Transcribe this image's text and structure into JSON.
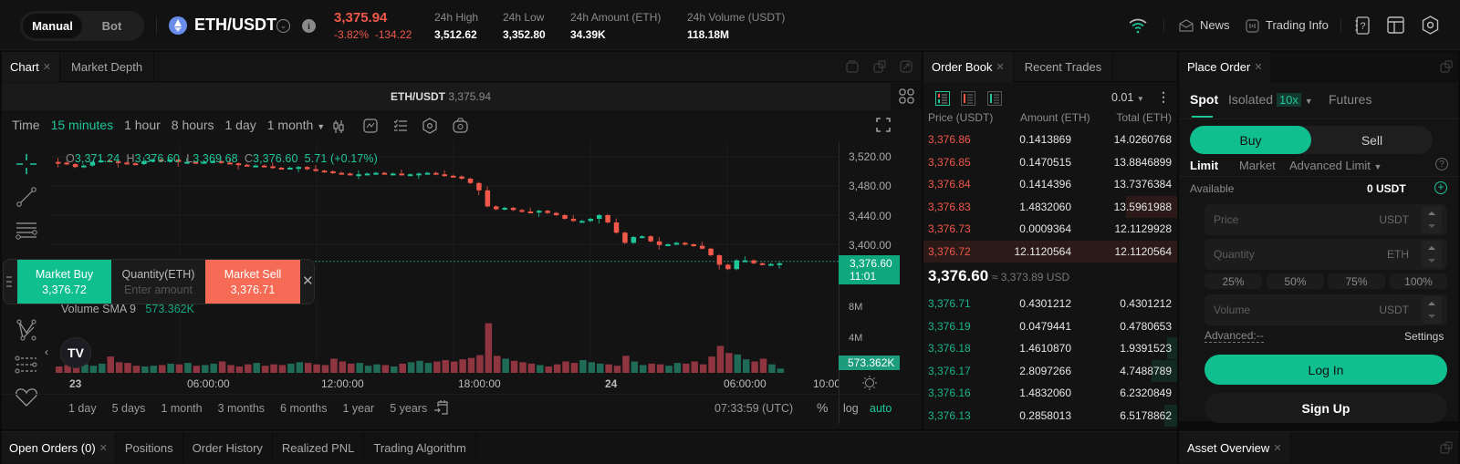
{
  "topbar": {
    "mode_options": [
      "Manual",
      "Bot"
    ],
    "active_mode": "Manual",
    "pair": "ETH/USDT",
    "last_price": "3,375.94",
    "change_pct": "-3.82%",
    "change_abs": "-134.22",
    "stats": [
      {
        "label": "24h High",
        "value": "3,512.62"
      },
      {
        "label": "24h Low",
        "value": "3,352.80"
      },
      {
        "label": "24h Amount (ETH)",
        "value": "34.39K"
      },
      {
        "label": "24h Volume (USDT)",
        "value": "118.18M"
      }
    ],
    "news_label": "News",
    "trading_info_label": "Trading Info"
  },
  "chart_panel": {
    "tabs": [
      {
        "label": "Chart",
        "closable": true
      },
      {
        "label": "Market Depth",
        "closable": false
      }
    ],
    "symbol_label": "ETH/USDT",
    "symbol_price": "3,375.94",
    "intervals": [
      "Time",
      "15 minutes",
      "1 hour",
      "8 hours",
      "1 day",
      "1 month"
    ],
    "active_interval": "15 minutes",
    "ohlc": {
      "o_label": "O",
      "o": "3,371.24",
      "h_label": "H",
      "h": "3,376.60",
      "l_label": "L",
      "l": "3,369.68",
      "c_label": "C",
      "c": "3,376.60",
      "change": "5.71 (+0.17%)"
    },
    "price_axis": [
      "3,520.00",
      "3,480.00",
      "3,440.00",
      "3,400.00"
    ],
    "current_price_tag": "3,376.60",
    "countdown_tag": "11:01",
    "volume_label": "Volume SMA 9",
    "volume_value": "573.362K",
    "volume_axis": [
      "8M",
      "4M"
    ],
    "volume_tag": "573.362K",
    "time_axis": [
      "23",
      "06:00:00",
      "12:00:00",
      "18:00:00",
      "24",
      "06:00:00",
      "10:00"
    ],
    "ranges": [
      "1 day",
      "5 days",
      "1 month",
      "3 months",
      "6 months",
      "1 year",
      "5 years"
    ],
    "clock": "07:33:59 (UTC)",
    "scale_options": [
      "%",
      "log",
      "auto"
    ],
    "quick_trade": {
      "buy_label": "Market Buy",
      "buy_price": "3,376.72",
      "qty_label": "Quantity(ETH)",
      "qty_placeholder": "Enter amount",
      "sell_label": "Market Sell",
      "sell_price": "3,376.71"
    }
  },
  "chart_data": {
    "type": "candlestick",
    "title": "ETH/USDT 15 minutes",
    "ylim": [
      3360,
      3530
    ],
    "yticks": [
      3520,
      3480,
      3440,
      3400
    ],
    "xticks": [
      "23",
      "06:00:00",
      "12:00:00",
      "18:00:00",
      "24",
      "06:00:00",
      "10:00"
    ],
    "closes": [
      3512,
      3510,
      3506,
      3508,
      3513,
      3515,
      3514,
      3512,
      3511,
      3510,
      3514,
      3516,
      3515,
      3516,
      3513,
      3513,
      3512,
      3513,
      3514,
      3512,
      3511,
      3509,
      3508,
      3508,
      3507,
      3505,
      3504,
      3505,
      3506,
      3503,
      3501,
      3500,
      3498,
      3497,
      3496,
      3496,
      3497,
      3498,
      3497,
      3497,
      3496,
      3496,
      3497,
      3498,
      3496,
      3494,
      3493,
      3490,
      3484,
      3474,
      3452,
      3448,
      3450,
      3447,
      3445,
      3444,
      3446,
      3443,
      3440,
      3435,
      3432,
      3432,
      3435,
      3440,
      3430,
      3416,
      3402,
      3410,
      3411,
      3404,
      3399,
      3400,
      3402,
      3400,
      3398,
      3394,
      3385,
      3372,
      3366,
      3378,
      3378,
      3374,
      3373,
      3373,
      3374
    ],
    "volumes": [
      0.9,
      1.1,
      0.8,
      1.2,
      1.0,
      1.3,
      2.3,
      1.5,
      1.4,
      1.0,
      0.9,
      1.0,
      1.1,
      1.3,
      1.2,
      1.4,
      1.0,
      1.1,
      1.3,
      1.6,
      1.1,
      0.9,
      1.2,
      1.4,
      1.0,
      1.2,
      1.1,
      1.3,
      1.5,
      1.4,
      1.2,
      1.1,
      2.0,
      1.6,
      1.3,
      1.4,
      1.0,
      1.2,
      1.1,
      0.9,
      1.3,
      1.5,
      1.7,
      1.4,
      1.6,
      1.8,
      1.6,
      1.9,
      2.1,
      2.5,
      7.0,
      2.4,
      2.0,
      1.7,
      1.5,
      1.3,
      1.1,
      0.9,
      1.2,
      1.6,
      1.4,
      1.8,
      1.5,
      1.3,
      1.2,
      1.0,
      2.4,
      1.6,
      1.1,
      1.3,
      1.2,
      1.0,
      1.4,
      1.3,
      1.6,
      1.2,
      2.3,
      3.8,
      2.8,
      2.6,
      1.9,
      1.6,
      2.0,
      1.2,
      0.6
    ],
    "volume_ylim": [
      0,
      9
    ],
    "volume_yticks": [
      "8M",
      "4M"
    ]
  },
  "order_book": {
    "tabs": [
      {
        "label": "Order Book",
        "closable": true
      },
      {
        "label": "Recent Trades",
        "closable": false
      }
    ],
    "precision": "0.01",
    "headers": [
      "Price (USDT)",
      "Amount (ETH)",
      "Total (ETH)"
    ],
    "asks": [
      {
        "price": "3,376.86",
        "amount": "0.1413869",
        "total": "14.0260768"
      },
      {
        "price": "3,376.85",
        "amount": "0.1470515",
        "total": "13.8846899"
      },
      {
        "price": "3,376.84",
        "amount": "0.1414396",
        "total": "13.7376384"
      },
      {
        "price": "3,376.83",
        "amount": "1.4832060",
        "total": "13.5961988"
      },
      {
        "price": "3,376.73",
        "amount": "0.0009364",
        "total": "12.1129928"
      },
      {
        "price": "3,376.72",
        "amount": "12.1120564",
        "total": "12.1120564"
      }
    ],
    "mid_price": "3,376.60",
    "mid_usd": "≈ 3,373.89 USD",
    "bids": [
      {
        "price": "3,376.71",
        "amount": "0.4301212",
        "total": "0.4301212"
      },
      {
        "price": "3,376.19",
        "amount": "0.0479441",
        "total": "0.4780653"
      },
      {
        "price": "3,376.18",
        "amount": "1.4610870",
        "total": "1.9391523"
      },
      {
        "price": "3,376.17",
        "amount": "2.8097266",
        "total": "4.7488789"
      },
      {
        "price": "3,376.16",
        "amount": "1.4832060",
        "total": "6.2320849"
      },
      {
        "price": "3,376.13",
        "amount": "0.2858013",
        "total": "6.5178862"
      }
    ]
  },
  "place_order": {
    "tab_label": "Place Order",
    "market_tabs": [
      "Spot",
      "Isolated",
      "Futures"
    ],
    "leverage": "10x",
    "side_buy": "Buy",
    "side_sell": "Sell",
    "order_types": [
      "Limit",
      "Market",
      "Advanced Limit"
    ],
    "available_label": "Available",
    "available_value": "0 USDT",
    "price_placeholder": "Price",
    "price_unit": "USDT",
    "quantity_placeholder": "Quantity",
    "quantity_unit": "ETH",
    "percents": [
      "25%",
      "50%",
      "75%",
      "100%"
    ],
    "volume_placeholder": "Volume",
    "volume_unit": "USDT",
    "advanced_label": "Advanced:--",
    "settings_label": "Settings",
    "login_label": "Log In",
    "signup_label": "Sign Up"
  },
  "bottom": {
    "tabs": [
      "Open Orders (0)",
      "Positions",
      "Order History",
      "Realized PNL",
      "Trading Algorithm"
    ],
    "asset_overview_label": "Asset Overview"
  },
  "colors": {
    "up": "#1ec69a",
    "down": "#f0584a",
    "vol_up": "#1f6b57",
    "vol_down": "#8e3540",
    "accent": "#0fbf8f"
  }
}
